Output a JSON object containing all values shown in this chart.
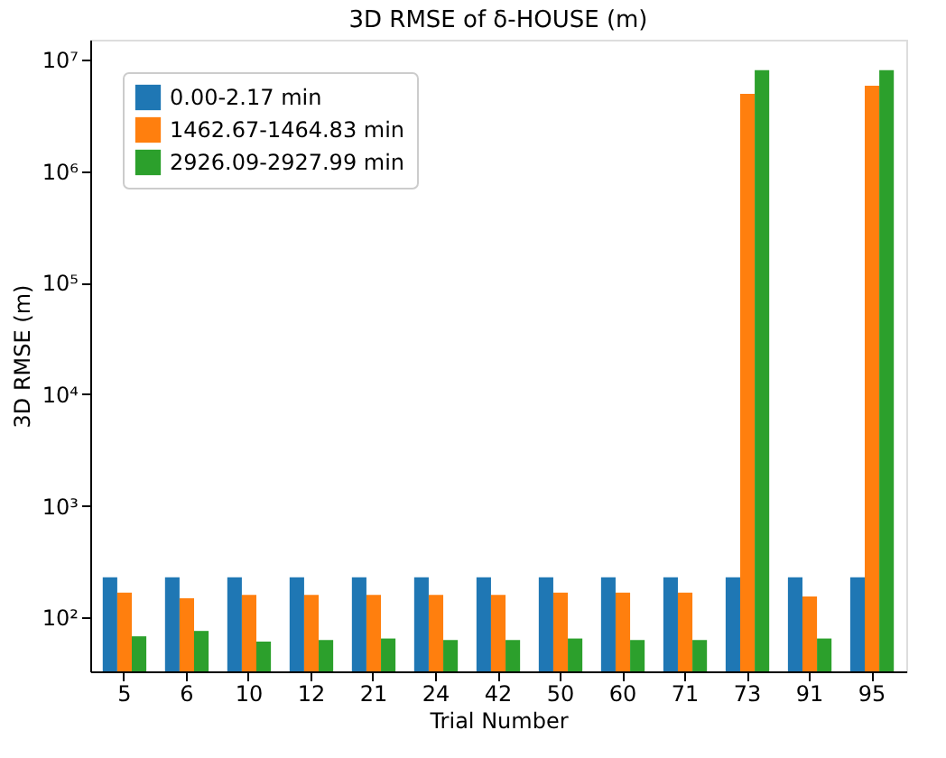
{
  "chart_data": {
    "type": "bar",
    "title": "3D RMSE of δ-HOUSE (m)",
    "xlabel": "Trial Number",
    "ylabel": "3D RMSE (m)",
    "categories": [
      "5",
      "6",
      "10",
      "12",
      "21",
      "24",
      "42",
      "50",
      "60",
      "71",
      "73",
      "91",
      "95"
    ],
    "series": [
      {
        "name": "0.00-2.17 min",
        "color": "#1f77b4",
        "values": [
          230,
          230,
          230,
          230,
          230,
          230,
          230,
          230,
          230,
          230,
          230,
          230,
          230
        ]
      },
      {
        "name": "1462.67-1464.83 min",
        "color": "#ff7f0e",
        "values": [
          167,
          149,
          160,
          160,
          160,
          160,
          160,
          167,
          167,
          167,
          4900000,
          155,
          5800000
        ]
      },
      {
        "name": "2926.09-2927.99 min",
        "color": "#2ca02c",
        "values": [
          68,
          76,
          61,
          63,
          65,
          63,
          63,
          65,
          63,
          63,
          8000000,
          65,
          8000000
        ]
      }
    ],
    "log": true,
    "ylim": [
      33,
      15000000
    ],
    "yticks": [
      {
        "value": 100,
        "label": "10²"
      },
      {
        "value": 1000,
        "label": "10³"
      },
      {
        "value": 10000,
        "label": "10⁴"
      },
      {
        "value": 100000,
        "label": "10⁵"
      },
      {
        "value": 1000000,
        "label": "10⁶"
      },
      {
        "value": 10000000,
        "label": "10⁷"
      }
    ],
    "grid": false,
    "legend": "top left"
  }
}
